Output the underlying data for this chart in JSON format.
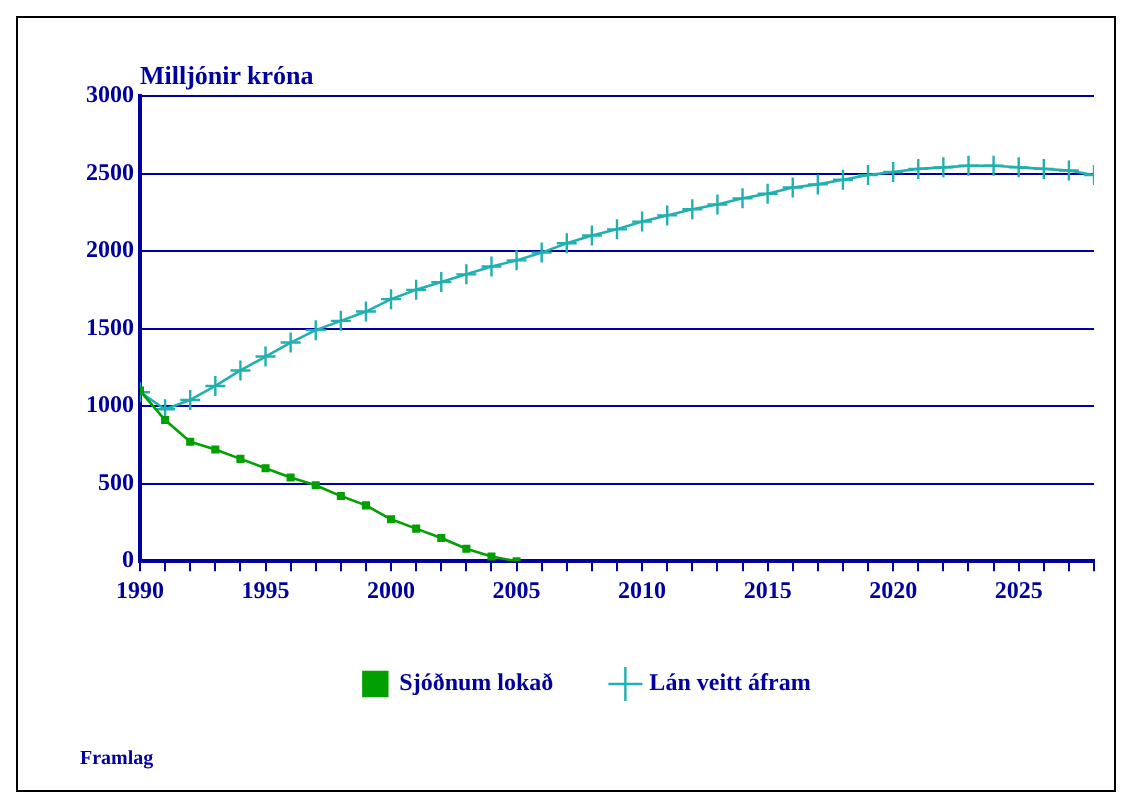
{
  "chart_data": {
    "type": "line",
    "ylabel": "Milljónir króna",
    "annotations": [
      "Framlag"
    ],
    "x": [
      1990,
      1991,
      1992,
      1993,
      1994,
      1995,
      1996,
      1997,
      1998,
      1999,
      2000,
      2001,
      2002,
      2003,
      2004,
      2005,
      2006,
      2007,
      2008,
      2009,
      2010,
      2011,
      2012,
      2013,
      2014,
      2015,
      2016,
      2017,
      2018,
      2019,
      2020,
      2021,
      2022,
      2023,
      2024,
      2025,
      2026,
      2027,
      2028
    ],
    "series": [
      {
        "name": "Sjóðnum lokað",
        "color": "#00a000",
        "marker": "square",
        "values": [
          1100,
          910,
          770,
          720,
          660,
          600,
          540,
          490,
          420,
          360,
          270,
          210,
          150,
          80,
          30,
          0,
          null,
          null,
          null,
          null,
          null,
          null,
          null,
          null,
          null,
          null,
          null,
          null,
          null,
          null,
          null,
          null,
          null,
          null,
          null,
          null,
          null,
          null,
          null
        ]
      },
      {
        "name": "Lán veitt áfram",
        "color": "#20b0b0",
        "marker": "cross",
        "values": [
          1090,
          980,
          1040,
          1130,
          1230,
          1320,
          1410,
          1490,
          1550,
          1610,
          1690,
          1750,
          1800,
          1850,
          1900,
          1940,
          1990,
          2050,
          2100,
          2140,
          2190,
          2230,
          2270,
          2300,
          2340,
          2370,
          2410,
          2430,
          2460,
          2490,
          2510,
          2530,
          2540,
          2550,
          2550,
          2540,
          2530,
          2520,
          2490
        ]
      }
    ],
    "xlim": [
      1990,
      2028
    ],
    "xticks": [
      1990,
      {
        "value": 1991,
        "label": null
      },
      {
        "value": 1992,
        "label": null
      },
      {
        "value": 1993,
        "label": null
      },
      {
        "value": 1994,
        "label": null
      },
      1995,
      {
        "value": 1996,
        "label": null
      },
      {
        "value": 1997,
        "label": null
      },
      {
        "value": 1998,
        "label": null
      },
      {
        "value": 1999,
        "label": null
      },
      2000,
      {
        "value": 2001,
        "label": null
      },
      {
        "value": 2002,
        "label": null
      },
      {
        "value": 2003,
        "label": null
      },
      {
        "value": 2004,
        "label": null
      },
      2005,
      {
        "value": 2006,
        "label": null
      },
      {
        "value": 2007,
        "label": null
      },
      {
        "value": 2008,
        "label": null
      },
      {
        "value": 2009,
        "label": null
      },
      2010,
      {
        "value": 2011,
        "label": null
      },
      {
        "value": 2012,
        "label": null
      },
      {
        "value": 2013,
        "label": null
      },
      {
        "value": 2014,
        "label": null
      },
      2015,
      {
        "value": 2016,
        "label": null
      },
      {
        "value": 2017,
        "label": null
      },
      {
        "value": 2018,
        "label": null
      },
      {
        "value": 2019,
        "label": null
      },
      2020,
      {
        "value": 2021,
        "label": null
      },
      {
        "value": 2022,
        "label": null
      },
      {
        "value": 2023,
        "label": null
      },
      {
        "value": 2024,
        "label": null
      },
      2025,
      {
        "value": 2026,
        "label": null
      },
      {
        "value": 2027,
        "label": null
      },
      {
        "value": 2028,
        "label": null
      }
    ],
    "ylim": [
      0,
      3000
    ],
    "yticks": [
      0,
      500,
      1000,
      1500,
      2000,
      2500,
      3000
    ],
    "grid": "y",
    "legend": "bottom"
  }
}
